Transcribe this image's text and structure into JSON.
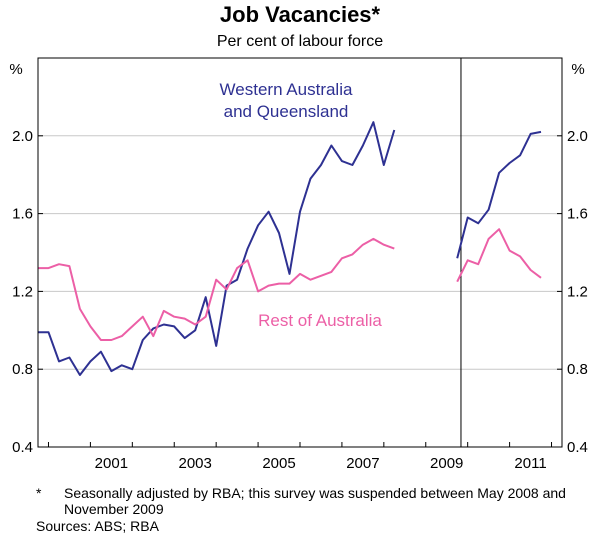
{
  "chart_data": {
    "type": "line",
    "title": "Job Vacancies*",
    "subtitle": "Per cent of labour force",
    "left_unit": "%",
    "right_unit": "%",
    "ylim": [
      0.4,
      2.4
    ],
    "yticks": [
      0.4,
      0.8,
      1.2,
      1.6,
      2.0
    ],
    "ytick_labels": [
      "0.4",
      "0.8",
      "1.2",
      "1.6",
      "2.0"
    ],
    "xlim": [
      1999.75,
      2012.25
    ],
    "xticks": [
      2001,
      2003,
      2005,
      2007,
      2009,
      2011
    ],
    "xtick_labels": [
      "2001",
      "2003",
      "2005",
      "2007",
      "2009",
      "2011"
    ],
    "series": [
      {
        "name": "Western Australia and Queensland",
        "label_lines": [
          "Western Australia",
          "and Queensland"
        ],
        "color": "#2e3192",
        "segments": [
          {
            "x": [
              1999.75,
              2000.0,
              2000.25,
              2000.5,
              2000.75,
              2001.0,
              2001.25,
              2001.5,
              2001.75,
              2002.0,
              2002.25,
              2002.5,
              2002.75,
              2003.0,
              2003.25,
              2003.5,
              2003.75,
              2004.0,
              2004.25,
              2004.5,
              2004.75,
              2005.0,
              2005.25,
              2005.5,
              2005.75,
              2006.0,
              2006.25,
              2006.5,
              2006.75,
              2007.0,
              2007.25,
              2007.5,
              2007.75,
              2008.0,
              2008.25
            ],
            "y": [
              0.99,
              0.99,
              0.84,
              0.86,
              0.77,
              0.84,
              0.89,
              0.79,
              0.82,
              0.8,
              0.95,
              1.01,
              1.03,
              1.02,
              0.96,
              1.0,
              1.17,
              0.92,
              1.23,
              1.26,
              1.42,
              1.54,
              1.61,
              1.5,
              1.29,
              1.61,
              1.78,
              1.85,
              1.95,
              1.87,
              1.85,
              1.95,
              2.07,
              1.85,
              2.03
            ]
          },
          {
            "x": [
              2009.75,
              2010.0,
              2010.25,
              2010.5,
              2010.75,
              2011.0,
              2011.25,
              2011.5,
              2011.75
            ],
            "y": [
              1.37,
              1.58,
              1.55,
              1.62,
              1.81,
              1.86,
              1.9,
              2.01,
              2.02
            ]
          }
        ]
      },
      {
        "name": "Rest of Australia",
        "label_lines": [
          "Rest of Australia"
        ],
        "color": "#ec5fa6",
        "segments": [
          {
            "x": [
              1999.75,
              2000.0,
              2000.25,
              2000.5,
              2000.75,
              2001.0,
              2001.25,
              2001.5,
              2001.75,
              2002.0,
              2002.25,
              2002.5,
              2002.75,
              2003.0,
              2003.25,
              2003.5,
              2003.75,
              2004.0,
              2004.25,
              2004.5,
              2004.75,
              2005.0,
              2005.25,
              2005.5,
              2005.75,
              2006.0,
              2006.25,
              2006.5,
              2006.75,
              2007.0,
              2007.25,
              2007.5,
              2007.75,
              2008.0,
              2008.25
            ],
            "y": [
              1.32,
              1.32,
              1.34,
              1.33,
              1.11,
              1.02,
              0.95,
              0.95,
              0.97,
              1.02,
              1.07,
              0.97,
              1.1,
              1.07,
              1.06,
              1.03,
              1.07,
              1.26,
              1.21,
              1.32,
              1.36,
              1.2,
              1.23,
              1.24,
              1.24,
              1.29,
              1.26,
              1.28,
              1.3,
              1.37,
              1.39,
              1.44,
              1.47,
              1.44,
              1.42
            ]
          },
          {
            "x": [
              2009.75,
              2010.0,
              2010.25,
              2010.5,
              2010.75,
              2011.0,
              2011.25,
              2011.5,
              2011.75
            ],
            "y": [
              1.25,
              1.36,
              1.34,
              1.47,
              1.52,
              1.41,
              1.38,
              1.31,
              1.27
            ]
          }
        ]
      }
    ]
  },
  "footnote": {
    "marker": "*",
    "text": "Seasonally adjusted by RBA; this survey was suspended between May 2008 and November 2009"
  },
  "sources": "Sources: ABS; RBA"
}
